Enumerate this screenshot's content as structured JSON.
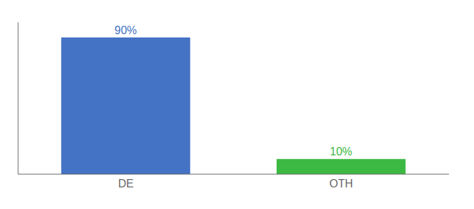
{
  "chart_data": {
    "type": "bar",
    "categories": [
      "DE",
      "OTH"
    ],
    "values": [
      90,
      10
    ],
    "value_labels": [
      "90%",
      "10%"
    ],
    "colors": [
      "#4472c4",
      "#3cb943"
    ],
    "ylim": [
      0,
      100
    ],
    "data_labels": true,
    "tick_labels": "x"
  }
}
